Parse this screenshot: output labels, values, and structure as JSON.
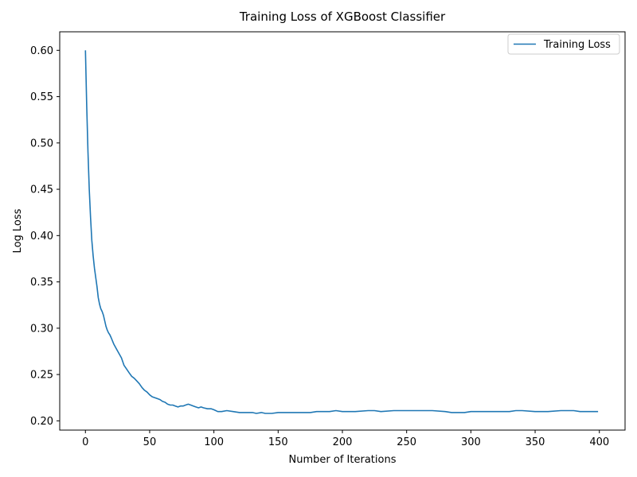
{
  "chart_data": {
    "type": "line",
    "title": "Training Loss of XGBoost Classifier",
    "xlabel": "Number of Iterations",
    "ylabel": "Log Loss",
    "xlim": [
      -20,
      420
    ],
    "ylim": [
      0.19,
      0.62
    ],
    "xticks": [
      0,
      50,
      100,
      150,
      200,
      250,
      300,
      350,
      400
    ],
    "yticks": [
      0.2,
      0.25,
      0.3,
      0.35,
      0.4,
      0.45,
      0.5,
      0.55,
      0.6
    ],
    "grid": false,
    "legend_position": "top-right",
    "series": [
      {
        "name": "Training Loss",
        "color": "#1f77b4",
        "points": [
          [
            0,
            0.6
          ],
          [
            1,
            0.54
          ],
          [
            2,
            0.49
          ],
          [
            3,
            0.45
          ],
          [
            4,
            0.42
          ],
          [
            5,
            0.395
          ],
          [
            6,
            0.378
          ],
          [
            7,
            0.365
          ],
          [
            8,
            0.355
          ],
          [
            9,
            0.345
          ],
          [
            10,
            0.333
          ],
          [
            11,
            0.326
          ],
          [
            12,
            0.321
          ],
          [
            13,
            0.318
          ],
          [
            14,
            0.314
          ],
          [
            15,
            0.308
          ],
          [
            16,
            0.302
          ],
          [
            17,
            0.298
          ],
          [
            18,
            0.295
          ],
          [
            19,
            0.293
          ],
          [
            20,
            0.29
          ],
          [
            22,
            0.283
          ],
          [
            24,
            0.278
          ],
          [
            26,
            0.273
          ],
          [
            28,
            0.268
          ],
          [
            30,
            0.26
          ],
          [
            32,
            0.256
          ],
          [
            34,
            0.252
          ],
          [
            36,
            0.248
          ],
          [
            38,
            0.246
          ],
          [
            40,
            0.243
          ],
          [
            42,
            0.24
          ],
          [
            44,
            0.236
          ],
          [
            46,
            0.233
          ],
          [
            48,
            0.231
          ],
          [
            50,
            0.228
          ],
          [
            52,
            0.226
          ],
          [
            54,
            0.225
          ],
          [
            56,
            0.224
          ],
          [
            58,
            0.223
          ],
          [
            60,
            0.221
          ],
          [
            62,
            0.22
          ],
          [
            64,
            0.218
          ],
          [
            66,
            0.217
          ],
          [
            68,
            0.217
          ],
          [
            70,
            0.216
          ],
          [
            72,
            0.215
          ],
          [
            74,
            0.216
          ],
          [
            76,
            0.216
          ],
          [
            78,
            0.217
          ],
          [
            80,
            0.218
          ],
          [
            82,
            0.217
          ],
          [
            84,
            0.216
          ],
          [
            86,
            0.215
          ],
          [
            88,
            0.214
          ],
          [
            90,
            0.215
          ],
          [
            92,
            0.214
          ],
          [
            95,
            0.213
          ],
          [
            98,
            0.213
          ],
          [
            100,
            0.212
          ],
          [
            103,
            0.21
          ],
          [
            106,
            0.21
          ],
          [
            110,
            0.211
          ],
          [
            115,
            0.21
          ],
          [
            120,
            0.209
          ],
          [
            125,
            0.209
          ],
          [
            130,
            0.209
          ],
          [
            133,
            0.208
          ],
          [
            137,
            0.209
          ],
          [
            140,
            0.208
          ],
          [
            145,
            0.208
          ],
          [
            150,
            0.209
          ],
          [
            155,
            0.209
          ],
          [
            160,
            0.209
          ],
          [
            165,
            0.209
          ],
          [
            170,
            0.209
          ],
          [
            175,
            0.209
          ],
          [
            180,
            0.21
          ],
          [
            185,
            0.21
          ],
          [
            190,
            0.21
          ],
          [
            195,
            0.211
          ],
          [
            200,
            0.21
          ],
          [
            210,
            0.21
          ],
          [
            220,
            0.211
          ],
          [
            225,
            0.211
          ],
          [
            230,
            0.21
          ],
          [
            240,
            0.211
          ],
          [
            250,
            0.211
          ],
          [
            260,
            0.211
          ],
          [
            270,
            0.211
          ],
          [
            280,
            0.21
          ],
          [
            285,
            0.209
          ],
          [
            290,
            0.209
          ],
          [
            295,
            0.209
          ],
          [
            300,
            0.21
          ],
          [
            310,
            0.21
          ],
          [
            320,
            0.21
          ],
          [
            325,
            0.21
          ],
          [
            330,
            0.21
          ],
          [
            335,
            0.211
          ],
          [
            340,
            0.211
          ],
          [
            350,
            0.21
          ],
          [
            360,
            0.21
          ],
          [
            370,
            0.211
          ],
          [
            380,
            0.211
          ],
          [
            385,
            0.21
          ],
          [
            390,
            0.21
          ],
          [
            395,
            0.21
          ],
          [
            399,
            0.21
          ]
        ]
      }
    ]
  }
}
